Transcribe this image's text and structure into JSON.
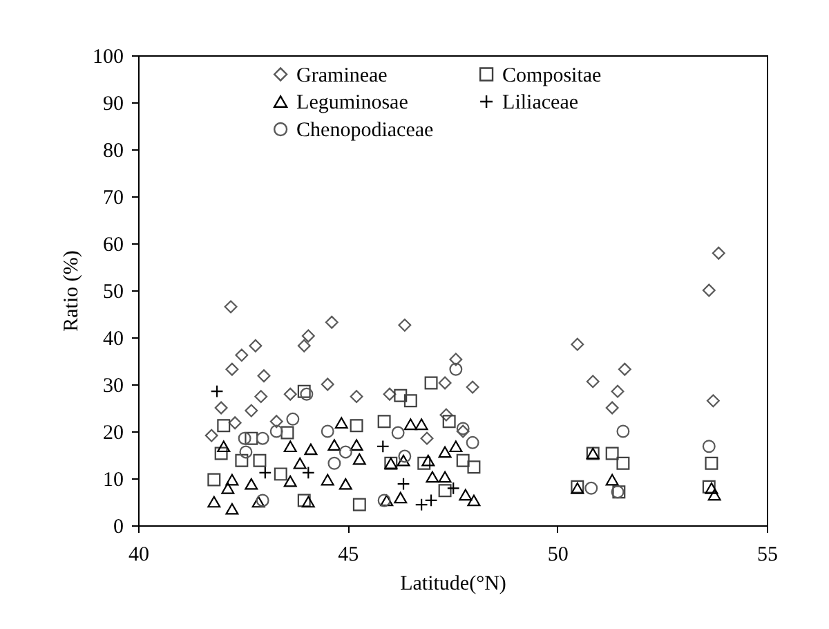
{
  "chart_data": {
    "type": "scatter",
    "xlabel": "Latitude(°N)",
    "ylabel": "Ratio (%)",
    "xlim": [
      40,
      55
    ],
    "ylim": [
      0,
      100
    ],
    "xticks": [
      40,
      45,
      50,
      55
    ],
    "yticks": [
      0,
      10,
      20,
      30,
      40,
      50,
      60,
      70,
      80,
      90,
      100
    ],
    "grid": false,
    "legend": "top",
    "series": [
      {
        "name": "Gramineae",
        "color": "#595959",
        "marker": "diamond",
        "x": [
          42.21,
          44.62,
          44.06,
          43.96,
          42.8,
          42.47,
          42.24,
          43.0,
          42.93,
          41.98,
          42.7,
          42.31,
          41.75,
          43.63,
          45.21,
          44.52,
          43.3,
          46.36,
          47.58,
          47.32,
          47.98,
          46.0,
          47.35,
          47.75,
          46.89,
          53.85,
          53.62,
          50.48,
          51.61,
          50.85,
          51.44,
          51.31,
          53.72
        ],
        "values": [
          46.5,
          43.2,
          40.3,
          38.2,
          38.2,
          36.2,
          33.2,
          31.8,
          27.4,
          25.0,
          24.4,
          21.8,
          19.1,
          27.9,
          27.4,
          30.0,
          22.1,
          42.6,
          35.3,
          30.3,
          29.4,
          27.9,
          23.5,
          20.0,
          18.5,
          57.9,
          50.0,
          38.5,
          33.2,
          30.6,
          28.5,
          25.0,
          26.5
        ]
      },
      {
        "name": "Compositae",
        "color": "#404040",
        "marker": "square",
        "x": [
          42.04,
          43.96,
          45.21,
          43.56,
          42.7,
          41.98,
          42.47,
          42.9,
          41.81,
          43.4,
          43.96,
          45.28,
          46.99,
          46.26,
          46.5,
          45.87,
          47.42,
          46.03,
          46.82,
          47.75,
          48.01,
          47.32,
          50.85,
          51.31,
          51.57,
          50.48,
          51.47,
          53.68,
          53.62
        ],
        "values": [
          21.2,
          28.5,
          21.2,
          19.7,
          18.5,
          15.3,
          13.8,
          13.8,
          9.7,
          10.9,
          5.3,
          4.4,
          30.3,
          27.6,
          26.5,
          22.1,
          22.1,
          13.2,
          13.2,
          13.8,
          12.4,
          7.4,
          15.3,
          15.3,
          13.2,
          8.2,
          7.1,
          13.2,
          8.2
        ]
      },
      {
        "name": "Leguminosae",
        "color": "#000000",
        "marker": "triangle",
        "x": [
          44.85,
          42.04,
          43.63,
          44.12,
          44.68,
          45.21,
          43.86,
          45.28,
          42.7,
          43.63,
          44.52,
          44.95,
          42.24,
          41.81,
          42.24,
          42.87,
          44.06,
          42.14,
          46.5,
          46.76,
          47.32,
          47.58,
          46.03,
          46.33,
          46.92,
          47.02,
          47.32,
          45.93,
          46.26,
          47.81,
          48.01,
          50.85,
          51.31,
          50.48,
          53.68,
          53.75
        ],
        "values": [
          21.8,
          16.8,
          16.8,
          16.2,
          17.1,
          17.1,
          13.2,
          14.1,
          8.8,
          9.4,
          9.7,
          8.8,
          9.7,
          5.0,
          3.5,
          5.0,
          5.0,
          7.9,
          21.5,
          21.5,
          15.6,
          16.8,
          13.2,
          13.8,
          13.8,
          10.3,
          10.3,
          5.3,
          5.9,
          6.5,
          5.3,
          15.3,
          9.7,
          7.9,
          7.9,
          6.5
        ]
      },
      {
        "name": "Liliaceae",
        "color": "#000000",
        "marker": "cross",
        "x": [
          41.88,
          45.84,
          44.06,
          43.03,
          46.33,
          46.99,
          46.76,
          47.52
        ],
        "values": [
          28.5,
          16.8,
          11.2,
          11.2,
          8.8,
          5.3,
          4.4,
          7.9
        ]
      },
      {
        "name": "Chenopodiaceae",
        "color": "#595959",
        "marker": "circle",
        "x": [
          44.02,
          43.69,
          43.3,
          42.54,
          42.97,
          44.52,
          44.95,
          44.68,
          42.57,
          42.97,
          46.2,
          47.58,
          47.98,
          47.75,
          46.36,
          45.87,
          51.57,
          50.81,
          51.44,
          53.62
        ],
        "values": [
          27.9,
          22.6,
          20.0,
          18.5,
          18.5,
          20.0,
          15.6,
          13.2,
          15.6,
          5.3,
          19.7,
          33.2,
          17.6,
          20.6,
          14.7,
          5.3,
          20.0,
          7.9,
          7.1,
          16.8
        ]
      }
    ]
  }
}
